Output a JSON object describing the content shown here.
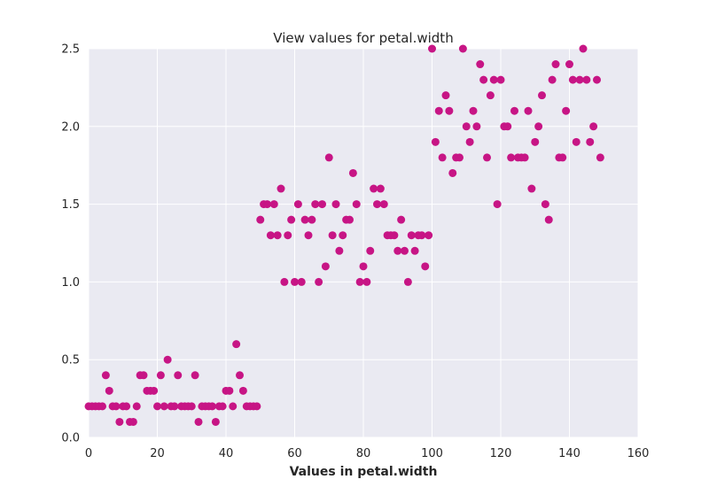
{
  "chart_data": {
    "type": "scatter",
    "title": "View values for petal.width",
    "xlabel": "Values in petal.width",
    "ylabel": "",
    "xlim": [
      0,
      160
    ],
    "ylim": [
      0,
      2.5
    ],
    "xticks": [
      "0",
      "20",
      "40",
      "60",
      "80",
      "100",
      "120",
      "140",
      "160"
    ],
    "yticks": [
      "0.0",
      "0.5",
      "1.0",
      "1.5",
      "2.0",
      "2.5"
    ],
    "grid": true,
    "colors": {
      "background": "#eaeaf2",
      "grid": "#ffffff",
      "marker": "#c71585"
    },
    "x": [
      0,
      1,
      2,
      3,
      4,
      5,
      6,
      7,
      8,
      9,
      10,
      11,
      12,
      13,
      14,
      15,
      16,
      17,
      18,
      19,
      20,
      21,
      22,
      23,
      24,
      25,
      26,
      27,
      28,
      29,
      30,
      31,
      32,
      33,
      34,
      35,
      36,
      37,
      38,
      39,
      40,
      41,
      42,
      43,
      44,
      45,
      46,
      47,
      48,
      49,
      50,
      51,
      52,
      53,
      54,
      55,
      56,
      57,
      58,
      59,
      60,
      61,
      62,
      63,
      64,
      65,
      66,
      67,
      68,
      69,
      70,
      71,
      72,
      73,
      74,
      75,
      76,
      77,
      78,
      79,
      80,
      81,
      82,
      83,
      84,
      85,
      86,
      87,
      88,
      89,
      90,
      91,
      92,
      93,
      94,
      95,
      96,
      97,
      98,
      99,
      100,
      101,
      102,
      103,
      104,
      105,
      106,
      107,
      108,
      109,
      110,
      111,
      112,
      113,
      114,
      115,
      116,
      117,
      118,
      119,
      120,
      121,
      122,
      123,
      124,
      125,
      126,
      127,
      128,
      129,
      130,
      131,
      132,
      133,
      134,
      135,
      136,
      137,
      138,
      139,
      140,
      141,
      142,
      143,
      144,
      145,
      146,
      147,
      148,
      149
    ],
    "y": [
      0.2,
      0.2,
      0.2,
      0.2,
      0.2,
      0.4,
      0.3,
      0.2,
      0.2,
      0.1,
      0.2,
      0.2,
      0.1,
      0.1,
      0.2,
      0.4,
      0.4,
      0.3,
      0.3,
      0.3,
      0.2,
      0.4,
      0.2,
      0.5,
      0.2,
      0.2,
      0.4,
      0.2,
      0.2,
      0.2,
      0.2,
      0.4,
      0.1,
      0.2,
      0.2,
      0.2,
      0.2,
      0.1,
      0.2,
      0.2,
      0.3,
      0.3,
      0.2,
      0.6,
      0.4,
      0.3,
      0.2,
      0.2,
      0.2,
      0.2,
      1.4,
      1.5,
      1.5,
      1.3,
      1.5,
      1.3,
      1.6,
      1.0,
      1.3,
      1.4,
      1.0,
      1.5,
      1.0,
      1.4,
      1.3,
      1.4,
      1.5,
      1.0,
      1.5,
      1.1,
      1.8,
      1.3,
      1.5,
      1.2,
      1.3,
      1.4,
      1.4,
      1.7,
      1.5,
      1.0,
      1.1,
      1.0,
      1.2,
      1.6,
      1.5,
      1.6,
      1.5,
      1.3,
      1.3,
      1.3,
      1.2,
      1.4,
      1.2,
      1.0,
      1.3,
      1.2,
      1.3,
      1.3,
      1.1,
      1.3,
      2.5,
      1.9,
      2.1,
      1.8,
      2.2,
      2.1,
      1.7,
      1.8,
      1.8,
      2.5,
      2.0,
      1.9,
      2.1,
      2.0,
      2.4,
      2.3,
      1.8,
      2.2,
      2.3,
      1.5,
      2.3,
      2.0,
      2.0,
      1.8,
      2.1,
      1.8,
      1.8,
      1.8,
      2.1,
      1.6,
      1.9,
      2.0,
      2.2,
      1.5,
      1.4,
      2.3,
      2.4,
      1.8,
      1.8,
      2.1,
      2.4,
      2.3,
      1.9,
      2.3,
      2.5,
      2.3,
      1.9,
      2.0,
      2.3,
      1.8
    ]
  }
}
